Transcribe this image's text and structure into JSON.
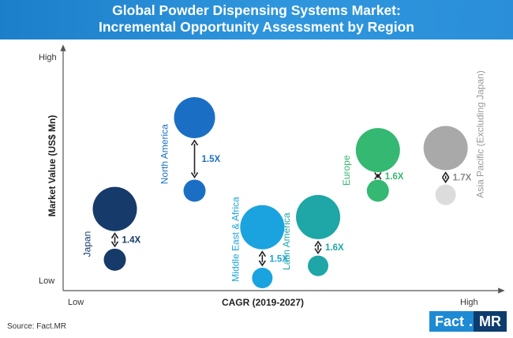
{
  "title_line1": "Global Powder Dispensing Systems Market:",
  "title_line2": "Incremental Opportunity Assessment by Region",
  "source": "Source: Fact.MR",
  "logo": {
    "part1": "Fact",
    "dot": ".",
    "part2": "MR"
  },
  "chart_data": {
    "type": "scatter",
    "subtype": "bubble-pairs",
    "xlabel": "CAGR (2019-2027)",
    "ylabel": "Market Value (US$ Mn)",
    "x_ticks": [
      "Low",
      "High"
    ],
    "y_ticks": [
      "Low",
      "High"
    ],
    "grid": false,
    "legend": "none",
    "colors": {
      "north_america": "#1a6fc4",
      "japan": "#163a6a",
      "middle_east_africa": "#1aa3de",
      "latin_america": "#1fa6a6",
      "europe": "#35b871",
      "asia_pacific": "#a9a9a9"
    },
    "series": [
      {
        "name": "North America",
        "multiplier": "1.5X",
        "cagr": 0.3,
        "value_base": 0.43,
        "value_future": 0.79,
        "color": "#1a6fc4",
        "label_color": "#1a6fc4",
        "mult_color": "#1a6fc4",
        "large_r": 26,
        "small_r": 14
      },
      {
        "name": "Japan",
        "multiplier": "1.4X",
        "cagr": 0.1,
        "value_base": 0.09,
        "value_future": 0.34,
        "color": "#163a6a",
        "label_color": "#163a6a",
        "mult_color": "#163a6a",
        "large_r": 28,
        "small_r": 14
      },
      {
        "name": "Middle East & Africa",
        "multiplier": "1.5X",
        "cagr": 0.47,
        "value_base": 0.0,
        "value_future": 0.25,
        "color": "#1aa3de",
        "label_color": "#1aa3de",
        "mult_color": "#1aa3de",
        "large_r": 28,
        "small_r": 13
      },
      {
        "name": "Latin America",
        "multiplier": "1.6X",
        "cagr": 0.61,
        "value_base": 0.06,
        "value_future": 0.3,
        "color": "#1fa6a6",
        "label_color": "#1fa6a6",
        "mult_color": "#1fa6a6",
        "large_r": 28,
        "small_r": 13
      },
      {
        "name": "Europe",
        "multiplier": "1.6X",
        "cagr": 0.76,
        "value_base": 0.43,
        "value_future": 0.63,
        "color": "#35b871",
        "label_color": "#35b871",
        "mult_color": "#35b871",
        "large_r": 28,
        "small_r": 14
      },
      {
        "name": "Asia Pacific (Excluding Japan)",
        "multiplier": "1.7X",
        "cagr": 0.93,
        "value_base": 0.41,
        "value_future": 0.64,
        "color": "#a9a9a9",
        "label_color": "#9a9a9a",
        "mult_color": "#8a8a8a",
        "large_r": 28,
        "small_r": 13,
        "small_color": "#dcdcdc"
      }
    ]
  }
}
